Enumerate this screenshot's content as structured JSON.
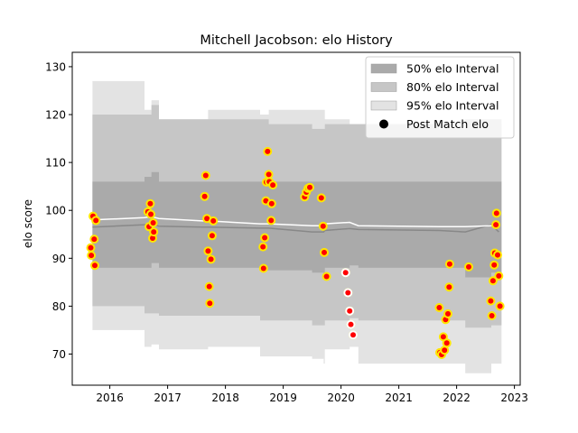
{
  "chart_data": {
    "type": "scatter",
    "title": "Mitchell Jacobson: elo History",
    "xlabel": "",
    "ylabel": "elo score",
    "xlim": [
      2015.35,
      2023.1
    ],
    "ylim": [
      63.5,
      133
    ],
    "x_ticks": [
      2016,
      2017,
      2018,
      2019,
      2020,
      2021,
      2022,
      2023
    ],
    "x_tick_labels": [
      "2016",
      "2017",
      "2018",
      "2019",
      "2020",
      "2021",
      "2022",
      "2023"
    ],
    "y_ticks": [
      70,
      80,
      90,
      100,
      110,
      120,
      130
    ],
    "y_tick_labels": [
      "70",
      "80",
      "90",
      "100",
      "110",
      "120",
      "130"
    ],
    "legend_position": "top-right",
    "legend": [
      {
        "label": "50% elo Interval",
        "kind": "band",
        "color": "#aaaaaa"
      },
      {
        "label": "80% elo Interval",
        "kind": "band",
        "color": "#c6c6c6"
      },
      {
        "label": "95% elo Interval",
        "kind": "band",
        "color": "#e3e3e3"
      },
      {
        "label": "Post Match elo",
        "kind": "marker",
        "color": "#000000"
      }
    ],
    "band_x": [
      2015.7,
      2016.6,
      2016.72,
      2016.85,
      2017.6,
      2017.7,
      2018.6,
      2018.75,
      2019.5,
      2019.7,
      2019.72,
      2020.15,
      2020.3,
      2021.7,
      2022.15,
      2022.6,
      2022.73
    ],
    "band_95": {
      "upper": [
        127,
        121,
        123,
        119,
        119,
        121,
        120,
        121,
        121,
        121,
        119,
        118,
        118,
        118,
        118,
        118,
        118
      ],
      "lower": [
        75,
        71.5,
        72,
        71,
        71,
        71.5,
        69.5,
        69.5,
        69,
        68,
        71,
        71.5,
        68,
        68,
        66,
        68,
        68
      ]
    },
    "band_80": {
      "upper": [
        120,
        120,
        122,
        119,
        119,
        119,
        119,
        118,
        117,
        117,
        118,
        118,
        118,
        117,
        119,
        119,
        119
      ],
      "lower": [
        80,
        78.5,
        78.5,
        78,
        78,
        78,
        77,
        77,
        76,
        76,
        77,
        77.5,
        77,
        77,
        75.5,
        76,
        76
      ]
    },
    "band_50": {
      "upper": [
        106,
        107,
        108,
        106,
        106,
        106,
        106,
        106,
        106,
        106,
        106,
        106,
        106,
        106,
        106,
        106,
        106
      ],
      "lower": [
        88,
        88,
        89,
        88,
        88,
        88,
        87.5,
        87.5,
        87,
        86.5,
        88,
        88.5,
        88,
        88,
        86,
        87,
        87
      ]
    },
    "mean_line": {
      "color": "#ffffff",
      "x": [
        2015.7,
        2016.6,
        2016.72,
        2016.85,
        2017.6,
        2017.7,
        2018.6,
        2018.75,
        2019.5,
        2019.7,
        2019.72,
        2020.15,
        2020.3,
        2021.7,
        2022.15,
        2022.6,
        2022.73
      ],
      "y": [
        98,
        98.5,
        98.7,
        98.3,
        97.8,
        97.8,
        97.2,
        97.2,
        96.8,
        96.8,
        97.2,
        97.5,
        96.8,
        96.6,
        96.6,
        96.8,
        96.8
      ]
    },
    "median_line": {
      "color": "#888888",
      "x": [
        2015.7,
        2016.6,
        2016.72,
        2016.85,
        2017.6,
        2017.7,
        2018.6,
        2018.75,
        2019.5,
        2019.7,
        2019.72,
        2020.15,
        2020.3,
        2021.7,
        2022.15,
        2022.6,
        2022.73
      ],
      "y": [
        96.5,
        97,
        97.2,
        96.7,
        96.5,
        96.5,
        96.3,
        96.3,
        95.5,
        95.5,
        95.8,
        96.2,
        96,
        95.8,
        95.5,
        97,
        95.5
      ]
    },
    "points": [
      {
        "x": 2015.67,
        "y": 92.2
      },
      {
        "x": 2015.68,
        "y": 90.6
      },
      {
        "x": 2015.71,
        "y": 98.8
      },
      {
        "x": 2015.73,
        "y": 94.0
      },
      {
        "x": 2015.74,
        "y": 88.5
      },
      {
        "x": 2015.76,
        "y": 97.9
      },
      {
        "x": 2016.66,
        "y": 99.7
      },
      {
        "x": 2016.68,
        "y": 96.6
      },
      {
        "x": 2016.7,
        "y": 101.4
      },
      {
        "x": 2016.71,
        "y": 99.2
      },
      {
        "x": 2016.74,
        "y": 94.2
      },
      {
        "x": 2016.75,
        "y": 97.4
      },
      {
        "x": 2016.76,
        "y": 95.5
      },
      {
        "x": 2017.64,
        "y": 102.9
      },
      {
        "x": 2017.66,
        "y": 107.3
      },
      {
        "x": 2017.68,
        "y": 98.3
      },
      {
        "x": 2017.7,
        "y": 91.5
      },
      {
        "x": 2017.72,
        "y": 84.1
      },
      {
        "x": 2017.73,
        "y": 80.6
      },
      {
        "x": 2017.75,
        "y": 89.8
      },
      {
        "x": 2017.77,
        "y": 94.7
      },
      {
        "x": 2017.79,
        "y": 97.8
      },
      {
        "x": 2018.65,
        "y": 92.4
      },
      {
        "x": 2018.66,
        "y": 87.9
      },
      {
        "x": 2018.68,
        "y": 94.3
      },
      {
        "x": 2018.7,
        "y": 102.0
      },
      {
        "x": 2018.71,
        "y": 105.9
      },
      {
        "x": 2018.73,
        "y": 112.3
      },
      {
        "x": 2018.75,
        "y": 107.5
      },
      {
        "x": 2018.76,
        "y": 106.0
      },
      {
        "x": 2018.79,
        "y": 97.9
      },
      {
        "x": 2018.8,
        "y": 101.4
      },
      {
        "x": 2018.82,
        "y": 105.3
      },
      {
        "x": 2019.37,
        "y": 102.8
      },
      {
        "x": 2019.4,
        "y": 103.8
      },
      {
        "x": 2019.43,
        "y": 104.6
      },
      {
        "x": 2019.46,
        "y": 104.8
      },
      {
        "x": 2019.66,
        "y": 102.6
      },
      {
        "x": 2019.69,
        "y": 96.7
      },
      {
        "x": 2019.71,
        "y": 91.2
      },
      {
        "x": 2019.75,
        "y": 86.2
      },
      {
        "x": 2020.08,
        "y": 87.0
      },
      {
        "x": 2020.12,
        "y": 82.8
      },
      {
        "x": 2020.15,
        "y": 79.0
      },
      {
        "x": 2020.17,
        "y": 76.2
      },
      {
        "x": 2020.21,
        "y": 74.0
      },
      {
        "x": 2021.7,
        "y": 79.7
      },
      {
        "x": 2021.71,
        "y": 70.3
      },
      {
        "x": 2021.74,
        "y": 69.9
      },
      {
        "x": 2021.77,
        "y": 73.6
      },
      {
        "x": 2021.79,
        "y": 70.8
      },
      {
        "x": 2021.81,
        "y": 77.2
      },
      {
        "x": 2021.83,
        "y": 72.3
      },
      {
        "x": 2021.85,
        "y": 78.4
      },
      {
        "x": 2021.87,
        "y": 84.0
      },
      {
        "x": 2021.88,
        "y": 88.8
      },
      {
        "x": 2022.21,
        "y": 88.2
      },
      {
        "x": 2022.59,
        "y": 81.1
      },
      {
        "x": 2022.61,
        "y": 78.0
      },
      {
        "x": 2022.63,
        "y": 85.3
      },
      {
        "x": 2022.65,
        "y": 88.6
      },
      {
        "x": 2022.66,
        "y": 91.1
      },
      {
        "x": 2022.68,
        "y": 97.0
      },
      {
        "x": 2022.69,
        "y": 99.4
      },
      {
        "x": 2022.71,
        "y": 90.7
      },
      {
        "x": 2022.73,
        "y": 86.3
      },
      {
        "x": 2022.75,
        "y": 80.0
      }
    ],
    "point_fill": "#ffe600",
    "point_edge": "#ff0000",
    "highlight_points": [
      {
        "x": 2020.08,
        "y": 87.0
      },
      {
        "x": 2020.12,
        "y": 82.8
      },
      {
        "x": 2020.15,
        "y": 79.0
      },
      {
        "x": 2020.17,
        "y": 76.2
      },
      {
        "x": 2020.21,
        "y": 74.0
      }
    ],
    "highlight_fill": "#ffffff"
  }
}
